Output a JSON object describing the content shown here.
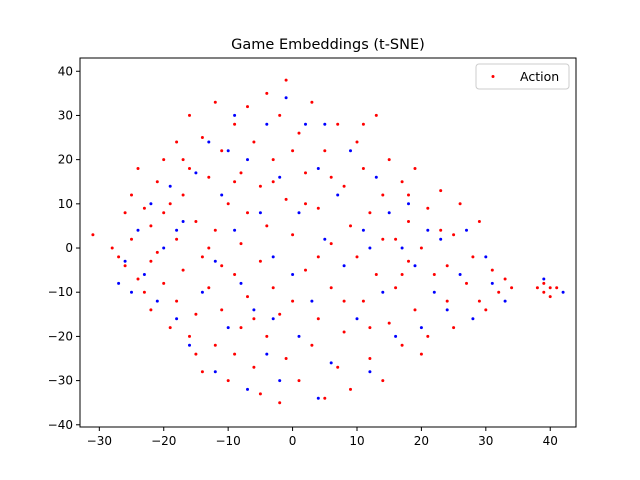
{
  "chart_data": {
    "type": "scatter",
    "title": "Game Embeddings (t-SNE)",
    "xlabel": "",
    "ylabel": "",
    "xlim": [
      -33,
      44
    ],
    "ylim": [
      -40.5,
      43
    ],
    "xticks": [
      -30,
      -20,
      -10,
      0,
      10,
      20,
      30,
      40
    ],
    "yticks": [
      -40,
      -30,
      -20,
      -10,
      0,
      10,
      20,
      30,
      40
    ],
    "grid": false,
    "legend": {
      "placement": "top-right",
      "entries": [
        {
          "label": "Action",
          "color": "#ff0000"
        }
      ]
    },
    "series": [
      {
        "name": "Action",
        "color": "#ff0000",
        "points": [
          [
            -31,
            3
          ],
          [
            -28,
            0
          ],
          [
            -27,
            -2
          ],
          [
            -26,
            8
          ],
          [
            -26,
            -4
          ],
          [
            -25,
            12
          ],
          [
            -25,
            2
          ],
          [
            -24,
            -7
          ],
          [
            -23,
            9
          ],
          [
            -23,
            -10
          ],
          [
            -22,
            5
          ],
          [
            -22,
            -14
          ],
          [
            -21,
            15
          ],
          [
            -21,
            -1
          ],
          [
            -20,
            20
          ],
          [
            -20,
            8
          ],
          [
            -20,
            -8
          ],
          [
            -19,
            -18
          ],
          [
            -18,
            24
          ],
          [
            -18,
            2
          ],
          [
            -18,
            -12
          ],
          [
            -17,
            12
          ],
          [
            -17,
            -5
          ],
          [
            -16,
            30
          ],
          [
            -16,
            18
          ],
          [
            -16,
            -20
          ],
          [
            -15,
            6
          ],
          [
            -15,
            -15
          ],
          [
            -14,
            25
          ],
          [
            -14,
            -2
          ],
          [
            -14,
            -28
          ],
          [
            -13,
            16
          ],
          [
            -13,
            -9
          ],
          [
            -12,
            33
          ],
          [
            -12,
            4
          ],
          [
            -12,
            -22
          ],
          [
            -11,
            22
          ],
          [
            -11,
            -14
          ],
          [
            -10,
            10
          ],
          [
            -10,
            -30
          ],
          [
            -9,
            28
          ],
          [
            -9,
            -6
          ],
          [
            -9,
            -24
          ],
          [
            -8,
            17
          ],
          [
            -8,
            1
          ],
          [
            -8,
            -18
          ],
          [
            -7,
            32
          ],
          [
            -7,
            8
          ],
          [
            -7,
            -11
          ],
          [
            -6,
            24
          ],
          [
            -6,
            -27
          ],
          [
            -5,
            14
          ],
          [
            -5,
            -3
          ],
          [
            -5,
            -33
          ],
          [
            -4,
            35
          ],
          [
            -4,
            5
          ],
          [
            -4,
            -20
          ],
          [
            -3,
            20
          ],
          [
            -3,
            -9
          ],
          [
            -2,
            30
          ],
          [
            -2,
            -15
          ],
          [
            -2,
            -35
          ],
          [
            -1,
            38
          ],
          [
            -1,
            11
          ],
          [
            -1,
            -25
          ],
          [
            0,
            3
          ],
          [
            0,
            -12
          ],
          [
            1,
            26
          ],
          [
            1,
            -30
          ],
          [
            2,
            17
          ],
          [
            2,
            -5
          ],
          [
            3,
            33
          ],
          [
            3,
            -22
          ],
          [
            4,
            9
          ],
          [
            4,
            -16
          ],
          [
            5,
            22
          ],
          [
            5,
            -34
          ],
          [
            6,
            1
          ],
          [
            6,
            -9
          ],
          [
            7,
            28
          ],
          [
            7,
            -27
          ],
          [
            8,
            14
          ],
          [
            8,
            -19
          ],
          [
            9,
            5
          ],
          [
            9,
            -32
          ],
          [
            10,
            24
          ],
          [
            10,
            -2
          ],
          [
            11,
            18
          ],
          [
            11,
            -12
          ],
          [
            12,
            8
          ],
          [
            12,
            -25
          ],
          [
            13,
            30
          ],
          [
            13,
            -6
          ],
          [
            14,
            12
          ],
          [
            14,
            -30
          ],
          [
            15,
            20
          ],
          [
            15,
            -17
          ],
          [
            16,
            2
          ],
          [
            16,
            -9
          ],
          [
            17,
            15
          ],
          [
            17,
            -22
          ],
          [
            18,
            6
          ],
          [
            18,
            -3
          ],
          [
            19,
            18
          ],
          [
            19,
            -14
          ],
          [
            20,
            0
          ],
          [
            21,
            9
          ],
          [
            21,
            -20
          ],
          [
            22,
            -6
          ],
          [
            23,
            13
          ],
          [
            24,
            -12
          ],
          [
            25,
            3
          ],
          [
            25,
            -18
          ],
          [
            26,
            10
          ],
          [
            27,
            -8
          ],
          [
            28,
            -2
          ],
          [
            29,
            6
          ],
          [
            30,
            -14
          ],
          [
            31,
            -5
          ],
          [
            32,
            -10
          ],
          [
            33,
            -7
          ],
          [
            34,
            -9
          ],
          [
            38,
            -9
          ],
          [
            39,
            -8
          ],
          [
            39,
            -10
          ],
          [
            40,
            -9
          ],
          [
            40,
            -11
          ],
          [
            41,
            -9
          ],
          [
            -24,
            18
          ],
          [
            -19,
            10
          ],
          [
            -13,
            0
          ],
          [
            -6,
            -16
          ],
          [
            2,
            10
          ],
          [
            8,
            -12
          ],
          [
            14,
            2
          ],
          [
            20,
            -24
          ],
          [
            -22,
            -3
          ],
          [
            -17,
            20
          ],
          [
            -11,
            -4
          ],
          [
            -3,
            15
          ],
          [
            4,
            -2
          ],
          [
            11,
            28
          ],
          [
            17,
            -6
          ],
          [
            23,
            4
          ],
          [
            -15,
            -24
          ],
          [
            -9,
            15
          ],
          [
            0,
            22
          ],
          [
            6,
            16
          ],
          [
            12,
            -18
          ],
          [
            18,
            12
          ],
          [
            24,
            -4
          ],
          [
            29,
            -12
          ]
        ]
      },
      {
        "name": "",
        "color": "#0000ff",
        "points": [
          [
            -27,
            -8
          ],
          [
            -26,
            -3
          ],
          [
            -24,
            4
          ],
          [
            -23,
            -6
          ],
          [
            -22,
            10
          ],
          [
            -21,
            -12
          ],
          [
            -20,
            0
          ],
          [
            -19,
            14
          ],
          [
            -18,
            -16
          ],
          [
            -17,
            6
          ],
          [
            -16,
            -22
          ],
          [
            -15,
            17
          ],
          [
            -14,
            -10
          ],
          [
            -13,
            24
          ],
          [
            -12,
            -3
          ],
          [
            -12,
            -28
          ],
          [
            -11,
            12
          ],
          [
            -10,
            -18
          ],
          [
            -9,
            30
          ],
          [
            -9,
            4
          ],
          [
            -8,
            -8
          ],
          [
            -7,
            20
          ],
          [
            -7,
            -32
          ],
          [
            -6,
            -14
          ],
          [
            -5,
            8
          ],
          [
            -4,
            28
          ],
          [
            -4,
            -24
          ],
          [
            -3,
            -2
          ],
          [
            -2,
            16
          ],
          [
            -2,
            -30
          ],
          [
            -1,
            34
          ],
          [
            0,
            -6
          ],
          [
            1,
            8
          ],
          [
            1,
            -20
          ],
          [
            2,
            28
          ],
          [
            3,
            -12
          ],
          [
            4,
            18
          ],
          [
            4,
            -34
          ],
          [
            5,
            2
          ],
          [
            6,
            -26
          ],
          [
            7,
            12
          ],
          [
            8,
            -4
          ],
          [
            9,
            22
          ],
          [
            10,
            -16
          ],
          [
            11,
            4
          ],
          [
            12,
            -28
          ],
          [
            13,
            16
          ],
          [
            14,
            -10
          ],
          [
            15,
            8
          ],
          [
            16,
            -20
          ],
          [
            17,
            0
          ],
          [
            18,
            10
          ],
          [
            19,
            -4
          ],
          [
            20,
            -18
          ],
          [
            21,
            4
          ],
          [
            22,
            -10
          ],
          [
            23,
            2
          ],
          [
            24,
            -14
          ],
          [
            26,
            -6
          ],
          [
            27,
            4
          ],
          [
            28,
            -16
          ],
          [
            30,
            -2
          ],
          [
            31,
            -8
          ],
          [
            33,
            -12
          ],
          [
            39,
            -7
          ],
          [
            42,
            -10
          ],
          [
            -25,
            -10
          ],
          [
            -18,
            4
          ],
          [
            -10,
            22
          ],
          [
            -3,
            -16
          ],
          [
            5,
            28
          ],
          [
            12,
            0
          ]
        ]
      }
    ]
  }
}
